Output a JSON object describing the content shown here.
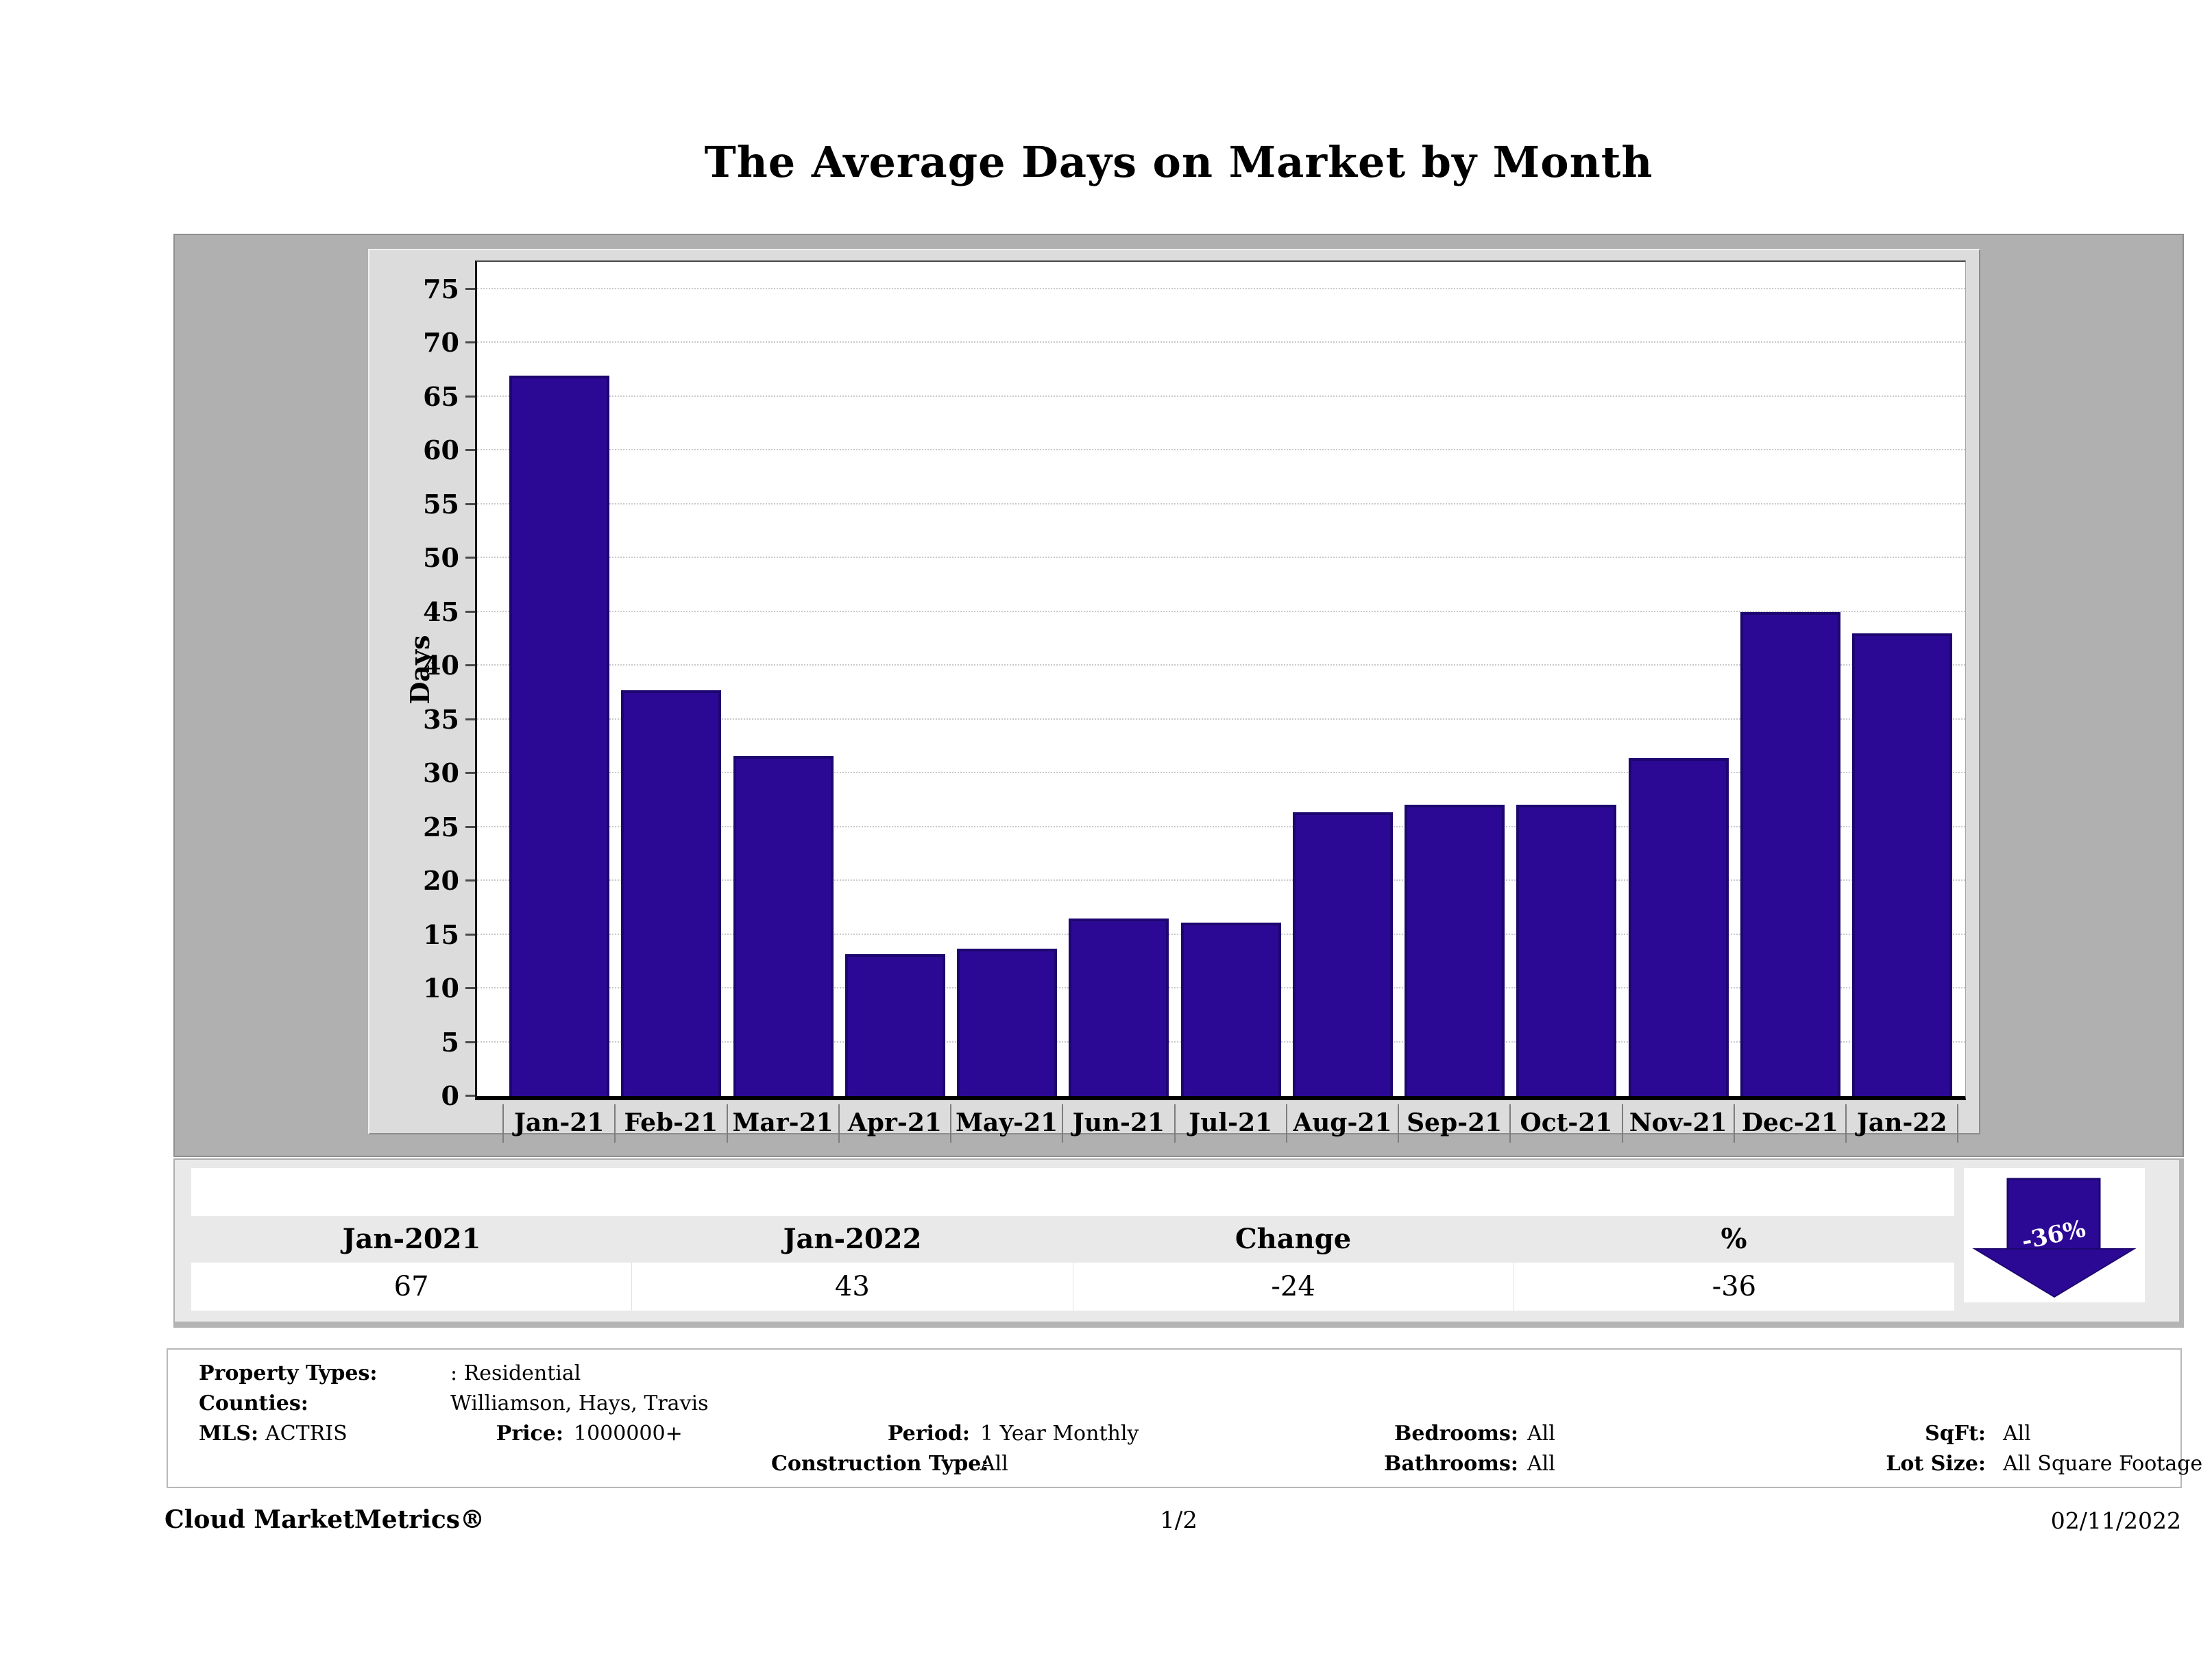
{
  "title": "The Average Days on Market by Month",
  "chart_data": {
    "type": "bar",
    "categories": [
      "Jan-21",
      "Feb-21",
      "Mar-21",
      "Apr-21",
      "May-21",
      "Jun-21",
      "Jul-21",
      "Aug-21",
      "Sep-21",
      "Oct-21",
      "Nov-21",
      "Dec-21",
      "Jan-22"
    ],
    "values": [
      67,
      37.7,
      31.6,
      13.2,
      13.7,
      16.5,
      16.1,
      26.4,
      27.1,
      27.1,
      31.4,
      45,
      43
    ],
    "title": "The Average Days on Market by Month",
    "xlabel": "",
    "ylabel": "Days",
    "ylim": [
      0,
      75
    ],
    "ytick_step": 5,
    "grid": true,
    "legend": "none",
    "bar_color": "#2c0995"
  },
  "summary": {
    "headers": [
      "Jan-2021",
      "Jan-2022",
      "Change",
      "%"
    ],
    "values": [
      "67",
      "43",
      "-24",
      "-36"
    ],
    "arrow_label": "-36%",
    "arrow_direction": "down",
    "arrow_color": "#2c0995"
  },
  "filters": {
    "property_types_label": "Property Types:",
    "property_types": ": Residential",
    "counties_label": "Counties:",
    "counties": "Williamson, Hays, Travis",
    "mls_label": "MLS:",
    "mls": "ACTRIS",
    "price_label": "Price:",
    "price": "1000000+",
    "period_label": "Period:",
    "period": "1 Year Monthly",
    "construction_type_label": "Construction Type:",
    "construction_type": "All",
    "bedrooms_label": "Bedrooms:",
    "bedrooms": "All",
    "bathrooms_label": "Bathrooms:",
    "bathrooms": "All",
    "sqft_label": "SqFt:",
    "sqft": "All",
    "lot_size_label": "Lot Size:",
    "lot_size": "All Square Footage"
  },
  "footer": {
    "brand": "Cloud MarketMetrics®",
    "page": "1/2",
    "date": "02/11/2022"
  }
}
